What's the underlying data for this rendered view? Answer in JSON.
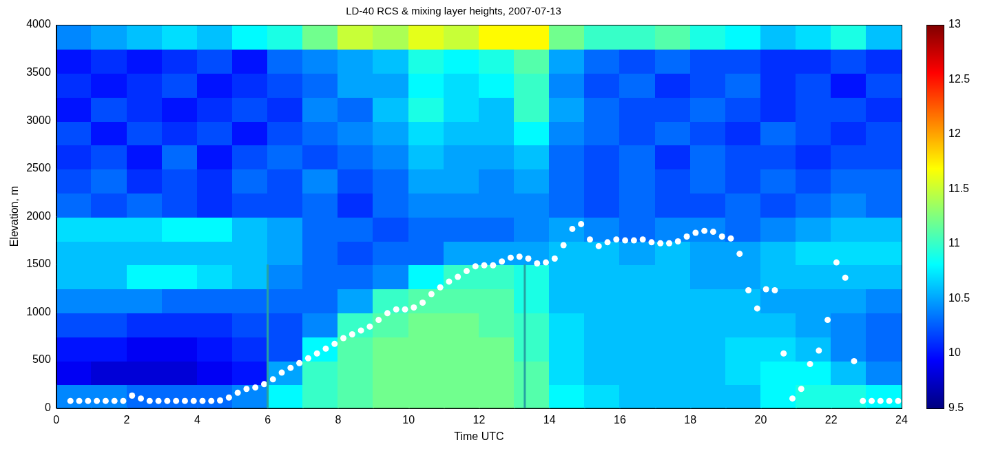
{
  "chart_data": {
    "type": "heatmap",
    "title": "LD-40 RCS & mixing layer heights, 2007-07-13",
    "x_label": "Time UTC",
    "y_label": "Elevation, m",
    "xlim": [
      0,
      24
    ],
    "xticks": [
      0,
      2,
      4,
      6,
      8,
      10,
      12,
      14,
      16,
      18,
      20,
      22,
      24
    ],
    "ylim": [
      0,
      4000
    ],
    "yticks": [
      0,
      500,
      1000,
      1500,
      2000,
      2500,
      3000,
      3500,
      4000
    ],
    "grid": false,
    "cells": {
      "x_edges": [
        0,
        1,
        2,
        3,
        4,
        5,
        6,
        7,
        8,
        9,
        10,
        11,
        12,
        13,
        14,
        15,
        16,
        17,
        18,
        19,
        20,
        21,
        22,
        23,
        24
      ],
      "y_edges": [
        0,
        250,
        500,
        750,
        1000,
        1250,
        1500,
        1750,
        2000,
        2250,
        2500,
        2750,
        3000,
        3250,
        3500,
        3750,
        4000
      ],
      "values": [
        [
          10.4,
          10.4,
          10.3,
          10.3,
          10.3,
          10.4,
          10.8,
          11.0,
          11.1,
          11.2,
          11.2,
          11.2,
          11.2,
          11.1,
          10.8,
          10.7,
          10.6,
          10.6,
          10.6,
          10.6,
          10.8,
          10.9,
          10.9,
          10.8
        ],
        [
          9.9,
          9.8,
          9.8,
          9.8,
          9.9,
          10.0,
          10.5,
          11.0,
          11.1,
          11.2,
          11.2,
          11.2,
          11.2,
          11.1,
          10.7,
          10.6,
          10.6,
          10.6,
          10.6,
          10.7,
          10.8,
          10.8,
          10.6,
          10.4
        ],
        [
          10.0,
          10.0,
          9.9,
          9.9,
          10.0,
          10.1,
          10.2,
          10.8,
          11.1,
          11.2,
          11.2,
          11.2,
          11.2,
          11.0,
          10.7,
          10.6,
          10.6,
          10.6,
          10.6,
          10.7,
          10.7,
          10.6,
          10.4,
          10.3
        ],
        [
          10.2,
          10.2,
          10.1,
          10.1,
          10.1,
          10.2,
          10.2,
          10.4,
          11.0,
          11.1,
          11.2,
          11.2,
          11.1,
          11.0,
          10.7,
          10.6,
          10.6,
          10.6,
          10.6,
          10.6,
          10.6,
          10.5,
          10.4,
          10.3
        ],
        [
          10.4,
          10.4,
          10.4,
          10.3,
          10.3,
          10.3,
          10.3,
          10.3,
          10.5,
          11.0,
          11.1,
          11.1,
          11.1,
          10.9,
          10.6,
          10.6,
          10.6,
          10.6,
          10.6,
          10.6,
          10.5,
          10.5,
          10.5,
          10.4
        ],
        [
          10.6,
          10.6,
          10.8,
          10.8,
          10.7,
          10.6,
          10.4,
          10.3,
          10.3,
          10.4,
          10.8,
          11.0,
          11.0,
          10.9,
          10.6,
          10.6,
          10.6,
          10.6,
          10.5,
          10.5,
          10.6,
          10.6,
          10.6,
          10.6
        ],
        [
          10.6,
          10.6,
          10.6,
          10.6,
          10.6,
          10.6,
          10.5,
          10.3,
          10.2,
          10.3,
          10.3,
          10.5,
          10.5,
          10.5,
          10.6,
          10.6,
          10.5,
          10.6,
          10.5,
          10.5,
          10.6,
          10.7,
          10.7,
          10.7
        ],
        [
          10.7,
          10.7,
          10.7,
          10.8,
          10.8,
          10.6,
          10.5,
          10.3,
          10.3,
          10.2,
          10.3,
          10.3,
          10.3,
          10.4,
          10.5,
          10.4,
          10.3,
          10.4,
          10.4,
          10.3,
          10.4,
          10.5,
          10.6,
          10.6
        ],
        [
          10.3,
          10.2,
          10.3,
          10.2,
          10.1,
          10.2,
          10.2,
          10.3,
          10.1,
          10.3,
          10.4,
          10.4,
          10.4,
          10.4,
          10.3,
          10.2,
          10.3,
          10.2,
          10.2,
          10.3,
          10.2,
          10.3,
          10.4,
          10.3
        ],
        [
          10.2,
          10.3,
          10.1,
          10.2,
          10.1,
          10.3,
          10.2,
          10.4,
          10.2,
          10.3,
          10.5,
          10.5,
          10.4,
          10.5,
          10.3,
          10.2,
          10.3,
          10.2,
          10.3,
          10.2,
          10.3,
          10.2,
          10.3,
          10.3
        ],
        [
          10.1,
          10.2,
          10.0,
          10.3,
          10.0,
          10.2,
          10.3,
          10.2,
          10.3,
          10.4,
          10.6,
          10.5,
          10.5,
          10.6,
          10.3,
          10.2,
          10.3,
          10.1,
          10.3,
          10.2,
          10.2,
          10.1,
          10.2,
          10.2
        ],
        [
          10.2,
          10.0,
          10.2,
          10.1,
          10.2,
          10.0,
          10.2,
          10.3,
          10.4,
          10.5,
          10.7,
          10.6,
          10.6,
          10.8,
          10.4,
          10.3,
          10.2,
          10.3,
          10.2,
          10.1,
          10.3,
          10.2,
          10.1,
          10.2
        ],
        [
          10.0,
          10.2,
          10.1,
          10.0,
          10.1,
          10.2,
          10.1,
          10.4,
          10.3,
          10.6,
          10.9,
          10.7,
          10.6,
          11.0,
          10.5,
          10.3,
          10.2,
          10.2,
          10.3,
          10.2,
          10.1,
          10.2,
          10.2,
          10.1
        ],
        [
          10.1,
          10.0,
          10.1,
          10.2,
          10.0,
          10.1,
          10.2,
          10.3,
          10.5,
          10.5,
          10.8,
          10.7,
          10.8,
          11.0,
          10.4,
          10.2,
          10.3,
          10.1,
          10.2,
          10.3,
          10.1,
          10.2,
          10.0,
          10.2
        ],
        [
          10.0,
          10.1,
          10.0,
          10.1,
          10.2,
          10.0,
          10.3,
          10.4,
          10.5,
          10.6,
          10.9,
          10.8,
          10.9,
          11.1,
          10.5,
          10.3,
          10.2,
          10.3,
          10.2,
          10.2,
          10.1,
          10.1,
          10.2,
          10.1
        ],
        [
          10.4,
          10.5,
          10.6,
          10.7,
          10.6,
          10.8,
          10.9,
          11.2,
          11.5,
          11.4,
          11.6,
          11.5,
          11.7,
          11.7,
          11.2,
          11.0,
          11.0,
          11.1,
          10.9,
          10.8,
          10.6,
          10.7,
          10.9,
          10.6
        ]
      ]
    },
    "colorbar": {
      "range": [
        9.5,
        13
      ],
      "ticks": [
        9.5,
        10,
        10.5,
        11,
        11.5,
        12,
        12.5,
        13
      ]
    },
    "series": [
      {
        "type": "line",
        "color": "#26a3a3",
        "line_style": "solid",
        "x": [
          6,
          6
        ],
        "values": [
          0,
          1500
        ]
      },
      {
        "type": "line",
        "color": "#26a3a3",
        "line_style": "solid",
        "x": [
          13.3,
          13.3
        ],
        "values": [
          0,
          1500
        ]
      },
      {
        "type": "scatter",
        "color": "#ffffff",
        "marker": "circle",
        "x": [
          0.4,
          0.65,
          0.9,
          1.15,
          1.4,
          1.65,
          1.9,
          2.15,
          2.4,
          2.65,
          2.9,
          3.15,
          3.4,
          3.65,
          3.9,
          4.15,
          4.4,
          4.65,
          4.9,
          5.15,
          5.4,
          5.65,
          5.9,
          6.15,
          6.4,
          6.65,
          6.9,
          7.15,
          7.4,
          7.65,
          7.9,
          8.15,
          8.4,
          8.65,
          8.9,
          9.15,
          9.4,
          9.65,
          9.9,
          10.15,
          10.4,
          10.65,
          10.9,
          11.15,
          11.4,
          11.65,
          11.9,
          12.15,
          12.4,
          12.65,
          12.9,
          13.15,
          13.4,
          13.65,
          13.9,
          14.15,
          14.4,
          14.65,
          14.9,
          15.15,
          15.4,
          15.65,
          15.9,
          16.15,
          16.4,
          16.65,
          16.9,
          17.15,
          17.4,
          17.65,
          17.9,
          18.15,
          18.4,
          18.65,
          18.9,
          19.15,
          19.4,
          19.65,
          19.9,
          20.15,
          20.4,
          20.65,
          20.9,
          21.15,
          21.4,
          21.65,
          21.9,
          22.15,
          22.4,
          22.65,
          22.9,
          23.15,
          23.4,
          23.65,
          23.9
        ],
        "values": [
          75,
          75,
          75,
          75,
          75,
          75,
          75,
          130,
          100,
          75,
          75,
          75,
          75,
          75,
          75,
          75,
          75,
          80,
          110,
          160,
          200,
          215,
          250,
          300,
          370,
          420,
          470,
          520,
          570,
          620,
          670,
          730,
          770,
          810,
          850,
          920,
          990,
          1030,
          1030,
          1050,
          1100,
          1190,
          1260,
          1320,
          1370,
          1430,
          1480,
          1490,
          1490,
          1530,
          1570,
          1580,
          1560,
          1510,
          1520,
          1560,
          1700,
          1870,
          1920,
          1760,
          1690,
          1730,
          1760,
          1750,
          1750,
          1760,
          1730,
          1720,
          1720,
          1740,
          1790,
          1830,
          1850,
          1840,
          1790,
          1770,
          1610,
          1230,
          1040,
          1240,
          1230,
          570,
          100,
          200,
          460,
          600,
          920,
          1520,
          1360,
          490,
          75,
          75,
          75,
          75,
          75
        ]
      }
    ]
  }
}
